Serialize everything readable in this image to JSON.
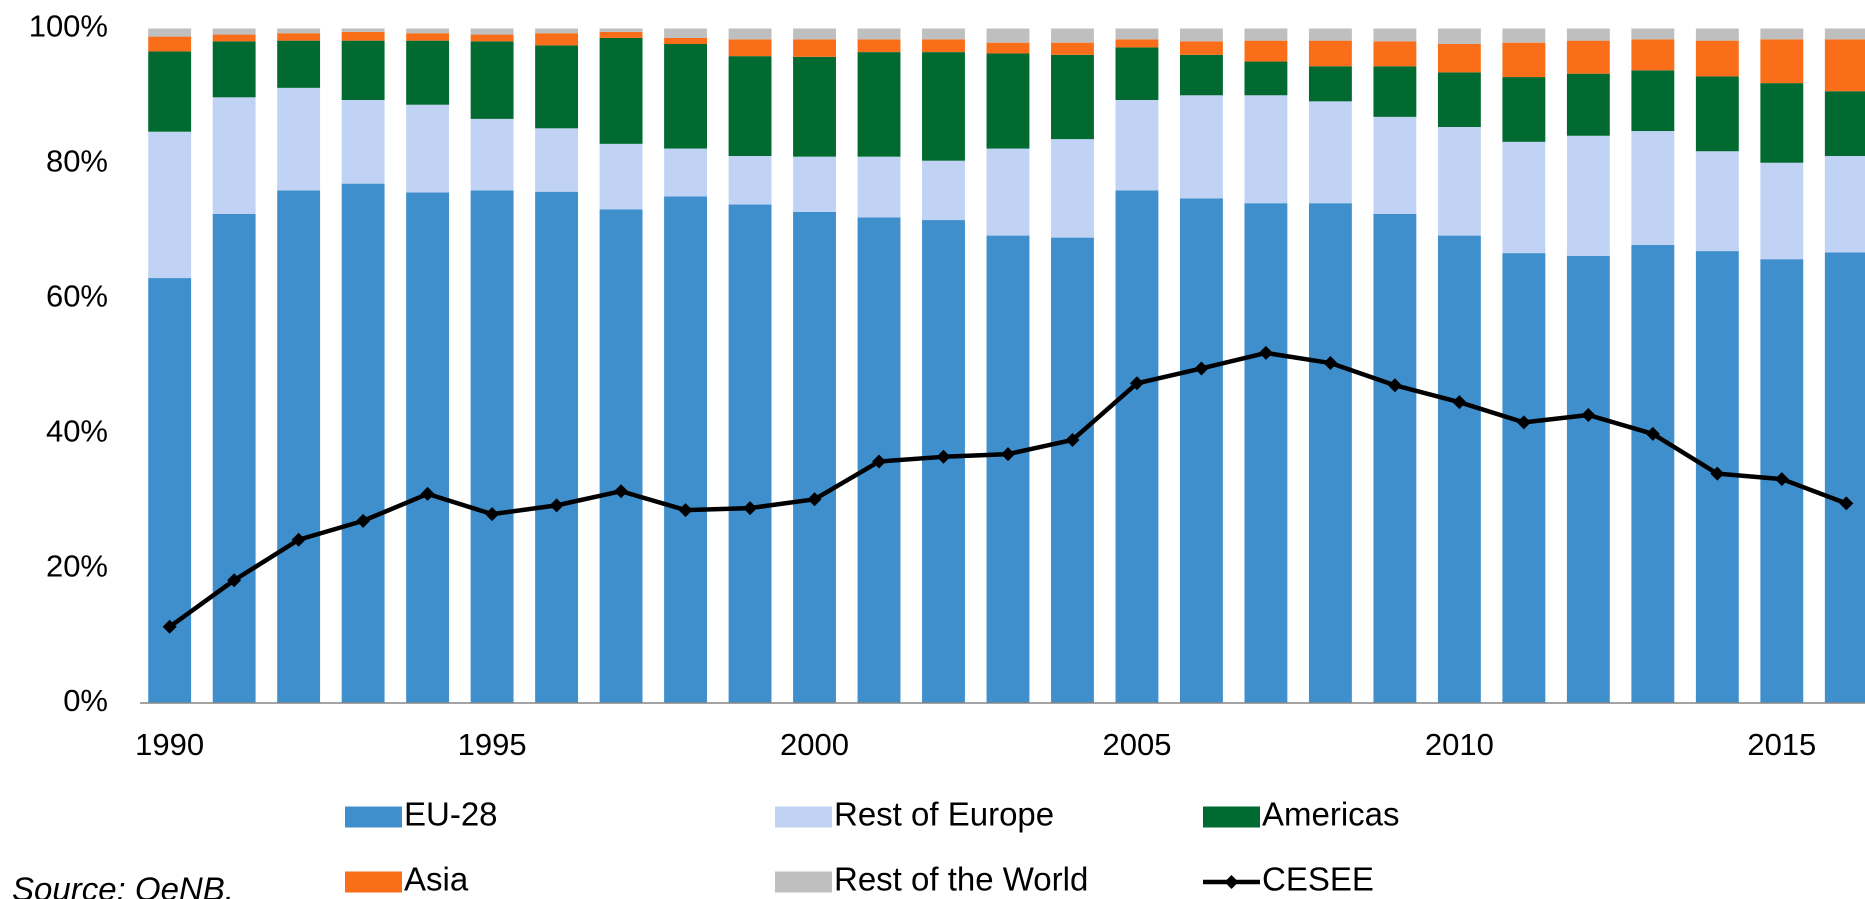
{
  "chart_data": {
    "type": "stacked_bar_line",
    "source": "Source: OeNB.",
    "x": [
      1990,
      1991,
      1992,
      1993,
      1994,
      1995,
      1996,
      1997,
      1998,
      1999,
      2000,
      2001,
      2002,
      2003,
      2004,
      2005,
      2006,
      2007,
      2008,
      2009,
      2010,
      2011,
      2012,
      2013,
      2014,
      2015,
      2016
    ],
    "xlim": [
      1989.54,
      2016.29
    ],
    "xticks": [
      1990,
      1995,
      2000,
      2005,
      2010,
      2015
    ],
    "ylim": [
      0,
      100
    ],
    "yticks": [
      {
        "value": 0,
        "label": "0%"
      },
      {
        "value": 20,
        "label": "20%"
      },
      {
        "value": 40,
        "label": "40%"
      },
      {
        "value": 60,
        "label": "60%"
      },
      {
        "value": 80,
        "label": "80%"
      },
      {
        "value": 100,
        "label": "100%"
      }
    ],
    "grid": false,
    "series": [
      {
        "name": "EU-28",
        "color": "#3f8fcd",
        "kind": "bar",
        "values": [
          63,
          72.5,
          76,
          77,
          75.7,
          76,
          75.8,
          73.2,
          75.1,
          73.9,
          72.8,
          72,
          71.6,
          69.3,
          69,
          76,
          74.8,
          74.1,
          74.1,
          72.5,
          69.3,
          66.7,
          66.3,
          67.9,
          67,
          65.8,
          66.8
        ]
      },
      {
        "name": "Rest of Europe",
        "color": "#c0d3f5",
        "kind": "bar",
        "values": [
          21.7,
          17.3,
          15.2,
          12.4,
          13,
          10.6,
          9.4,
          9.7,
          7.1,
          7.2,
          8.2,
          9,
          8.8,
          12.9,
          14.6,
          13.4,
          15.3,
          16,
          15.1,
          14.4,
          16.1,
          16.5,
          17.8,
          16.9,
          14.8,
          14.3,
          14.3
        ]
      },
      {
        "name": "Americas",
        "color": "#006a30",
        "kind": "bar",
        "values": [
          11.9,
          8.3,
          7,
          8.8,
          9.5,
          11.5,
          12.3,
          15.7,
          15.5,
          14.8,
          14.8,
          15.5,
          16.1,
          14.1,
          12.5,
          7.8,
          6,
          5,
          5.2,
          7.5,
          8.1,
          9.6,
          9.2,
          9,
          11.1,
          11.8,
          9.6
        ]
      },
      {
        "name": "Asia",
        "color": "#fa6e19",
        "kind": "bar",
        "values": [
          2.2,
          1,
          1.1,
          1.3,
          1.1,
          1,
          1.8,
          0.9,
          0.9,
          2.5,
          2.6,
          1.9,
          1.9,
          1.6,
          1.8,
          1.2,
          2,
          3.1,
          3.8,
          3.7,
          4.2,
          5.1,
          4.9,
          4.6,
          5.3,
          6.5,
          7.7
        ]
      },
      {
        "name": "Rest of the World",
        "color": "#bfbfbf",
        "kind": "bar",
        "values": [
          1.2,
          0.9,
          0.7,
          0.5,
          0.7,
          0.9,
          0.7,
          0.5,
          1.4,
          1.6,
          1.6,
          1.6,
          1.6,
          2.1,
          2.1,
          1.6,
          1.9,
          1.8,
          1.8,
          1.9,
          2.3,
          2.1,
          1.8,
          1.6,
          1.8,
          1.6,
          1.6
        ]
      },
      {
        "name": "CESEE",
        "color": "#000000",
        "kind": "line",
        "values": [
          11.3,
          18.2,
          24.2,
          27,
          31,
          28,
          29.3,
          31.4,
          28.6,
          28.9,
          30.2,
          35.8,
          36.5,
          36.9,
          39,
          47.4,
          49.6,
          51.9,
          50.4,
          47.1,
          44.6,
          41.6,
          42.7,
          39.9,
          34,
          33.2,
          29.6
        ]
      }
    ]
  }
}
